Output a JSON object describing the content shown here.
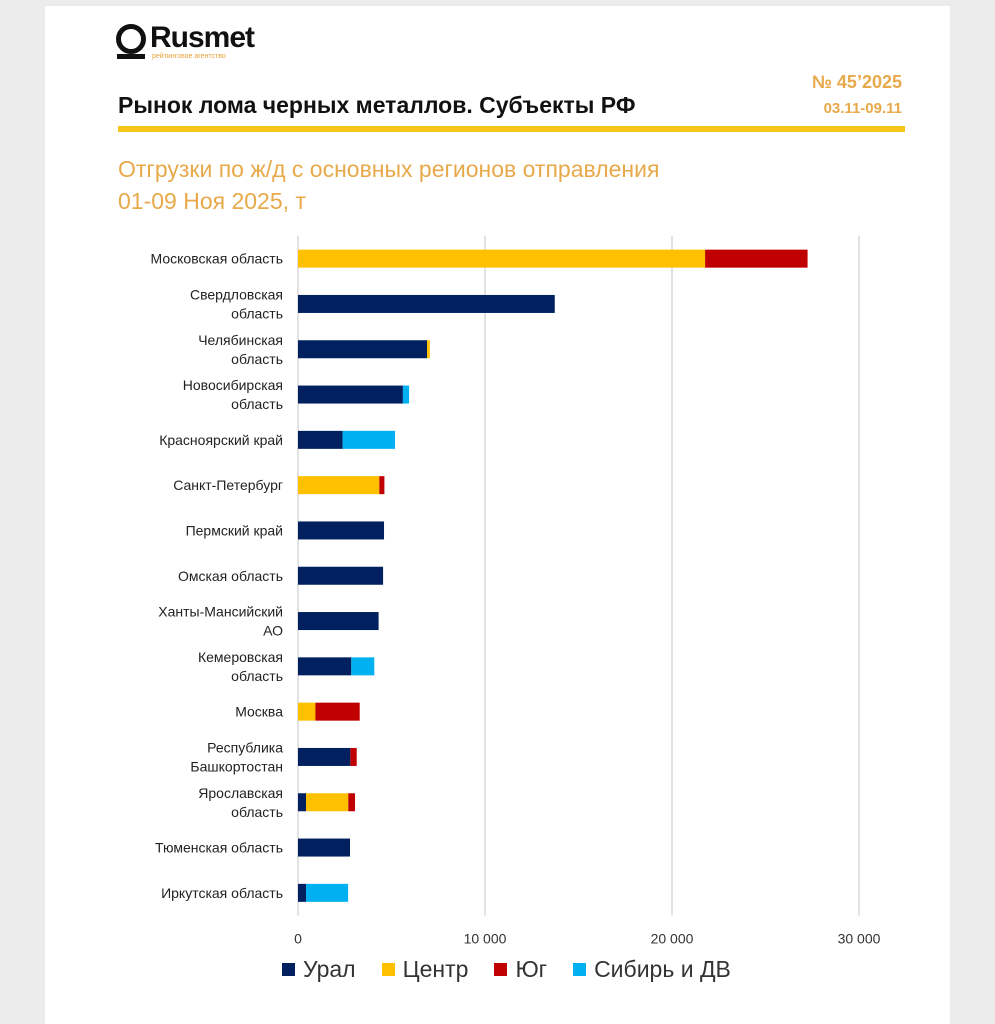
{
  "header": {
    "logo_text": "Rusmet",
    "logo_subtitle": "рейтинговое агентство",
    "title": "Рынок лома черных металлов. Субъекты РФ",
    "issue": "№ 45’2025",
    "dates": "03.11-09.11"
  },
  "chart_data": {
    "type": "bar",
    "orientation": "horizontal",
    "stacked": true,
    "title": "Отгрузки по ж/д с основных регионов отправления",
    "subtitle": "01-09 Ноя 2025, т",
    "categories": [
      "Московская область",
      "Свердловская\nобласть",
      "Челябинская\nобласть",
      "Новосибирская\nобласть",
      "Красноярский край",
      "Санкт-Петербург",
      "Пермский край",
      "Омская область",
      "Ханты-Мансийский\nАО",
      "Кемеровская\nобласть",
      "Москва",
      "Республика\nБашкортостан",
      "Ярославская\nобласть",
      "Тюменская область",
      "Иркутская область"
    ],
    "series": [
      {
        "name": "Урал",
        "color": "#002060",
        "values": [
          0,
          13730,
          6900,
          5610,
          2390,
          0,
          4600,
          4550,
          4310,
          2850,
          0,
          2800,
          430,
          2780,
          430
        ]
      },
      {
        "name": "Центр",
        "color": "#FFC000",
        "values": [
          21770,
          0,
          150,
          0,
          0,
          4350,
          0,
          0,
          0,
          0,
          930,
          0,
          2260,
          0,
          0
        ]
      },
      {
        "name": "Юг",
        "color": "#C00000",
        "values": [
          5480,
          0,
          0,
          0,
          0,
          270,
          0,
          0,
          0,
          0,
          2370,
          340,
          360,
          0,
          0
        ]
      },
      {
        "name": "Сибирь и ДВ",
        "color": "#00B0F0",
        "values": [
          0,
          0,
          0,
          330,
          2800,
          0,
          0,
          0,
          0,
          1230,
          0,
          0,
          0,
          0,
          2250
        ]
      }
    ],
    "xlim": [
      0,
      30000
    ],
    "xticks": [
      0,
      10000,
      20000,
      30000
    ],
    "xtick_labels": [
      "0",
      "10 000",
      "20 000",
      "30 000"
    ],
    "grid": true,
    "legend_position": "bottom"
  }
}
